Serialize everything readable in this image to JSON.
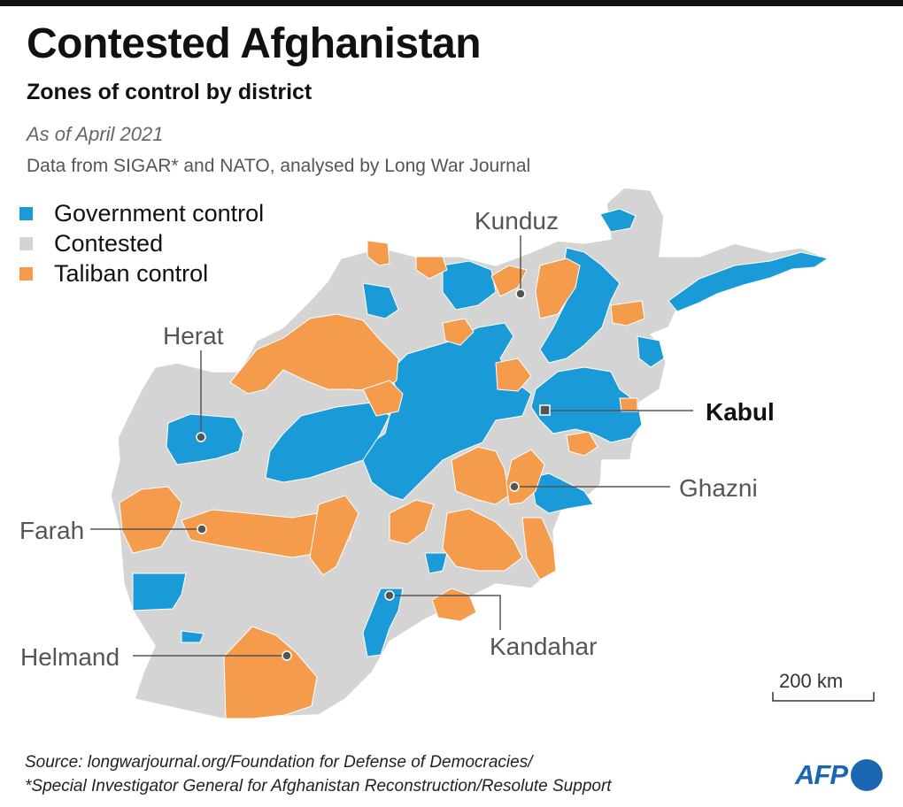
{
  "title": "Contested Afghanistan",
  "subtitle": "Zones of control by district",
  "date": "As of April 2021",
  "credit": "Data from SIGAR* and NATO, analysed by Long War Journal",
  "legend": [
    {
      "label": "Government control",
      "color": "#1a9ad6"
    },
    {
      "label": "Contested",
      "color": "#d4d4d4"
    },
    {
      "label": "Taliban control",
      "color": "#f59b4c"
    }
  ],
  "cities": {
    "kunduz": "Kunduz",
    "herat": "Herat",
    "kabul": "Kabul",
    "ghazni": "Ghazni",
    "farah": "Farah",
    "kandahar": "Kandahar",
    "helmand": "Helmand"
  },
  "scale": "200 km",
  "source_line1": "Source: longwarjournal.org/Foundation for Defense of Democracies/",
  "source_line2": "*Special Investigator General for Afghanistan Reconstruction/Resolute Support",
  "logo": "AFP",
  "colors": {
    "government": "#1a9ad6",
    "contested": "#d4d4d4",
    "taliban": "#f59b4c",
    "leader": "#555555",
    "marker": "#555555"
  }
}
